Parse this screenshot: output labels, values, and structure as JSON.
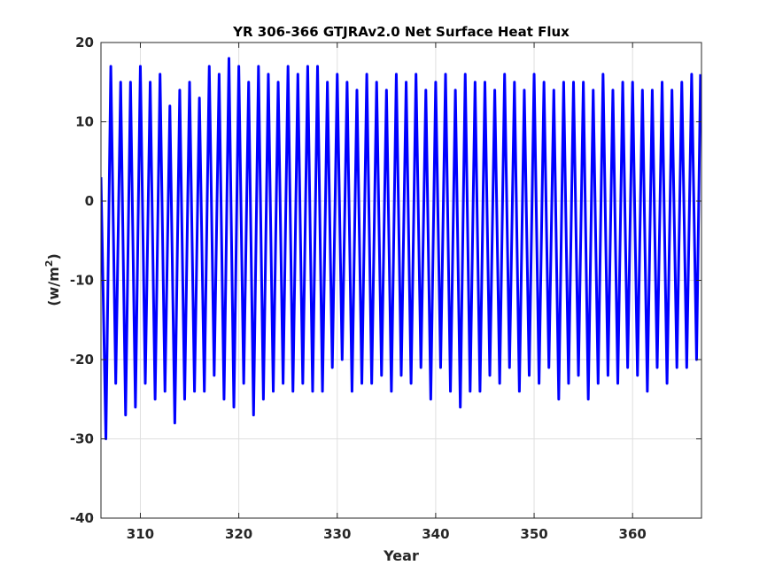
{
  "chart_data": {
    "type": "line",
    "title": "YR 306-366 GTJRAv2.0 Net Surface Heat Flux",
    "xlabel": "Year",
    "ylabel_base": "(w/m",
    "ylabel_sup": "2",
    "ylabel_end": ")",
    "xlim": [
      306,
      367
    ],
    "ylim": [
      -40,
      20
    ],
    "xticks": [
      310,
      320,
      330,
      340,
      350,
      360
    ],
    "yticks": [
      -40,
      -30,
      -20,
      -10,
      0,
      10,
      20
    ],
    "grid": true,
    "line_color": "#0000ff",
    "series": [
      {
        "x": [
          306.0,
          306.5,
          307.0,
          307.5,
          308.0,
          308.5,
          309.0,
          309.5,
          310.0,
          310.5,
          311.0,
          311.5,
          312.0,
          312.5,
          313.0,
          313.5,
          314.0,
          314.5,
          315.0,
          315.5,
          316.0,
          316.5,
          317.0,
          317.5,
          318.0,
          318.5,
          319.0,
          319.5,
          320.0,
          320.5,
          321.0,
          321.5,
          322.0,
          322.5,
          323.0,
          323.5,
          324.0,
          324.5,
          325.0,
          325.5,
          326.0,
          326.5,
          327.0,
          327.5,
          328.0,
          328.5,
          329.0,
          329.5,
          330.0,
          330.5,
          331.0,
          331.5,
          332.0,
          332.5,
          333.0,
          333.5,
          334.0,
          334.5,
          335.0,
          335.5,
          336.0,
          336.5,
          337.0,
          337.5,
          338.0,
          338.5,
          339.0,
          339.5,
          340.0,
          340.5,
          341.0,
          341.5,
          342.0,
          342.5,
          343.0,
          343.5,
          344.0,
          344.5,
          345.0,
          345.5,
          346.0,
          346.5,
          347.0,
          347.5,
          348.0,
          348.5,
          349.0,
          349.5,
          350.0,
          350.5,
          351.0,
          351.5,
          352.0,
          352.5,
          353.0,
          353.5,
          354.0,
          354.5,
          355.0,
          355.5,
          356.0,
          356.5,
          357.0,
          357.5,
          358.0,
          358.5,
          359.0,
          359.5,
          360.0,
          360.5,
          361.0,
          361.5,
          362.0,
          362.5,
          363.0,
          363.5,
          364.0,
          364.5,
          365.0,
          365.5,
          366.0,
          366.5,
          366.9
        ],
        "y": [
          3,
          -30,
          17,
          -23,
          15,
          -27,
          15,
          -26,
          17,
          -23,
          15,
          -25,
          16,
          -24,
          12,
          -28,
          14,
          -25,
          15,
          -24,
          13,
          -24,
          17,
          -22,
          16,
          -25,
          18,
          -26,
          17,
          -23,
          15,
          -27,
          17,
          -25,
          16,
          -24,
          15,
          -23,
          17,
          -24,
          16,
          -23,
          17,
          -24,
          17,
          -24,
          15,
          -21,
          16,
          -20,
          15,
          -24,
          14,
          -23,
          16,
          -23,
          15,
          -22,
          14,
          -24,
          16,
          -22,
          15,
          -23,
          16,
          -21,
          14,
          -25,
          15,
          -21,
          16,
          -24,
          14,
          -26,
          16,
          -24,
          15,
          -24,
          15,
          -22,
          14,
          -23,
          16,
          -21,
          15,
          -24,
          14,
          -22,
          16,
          -23,
          15,
          -21,
          14,
          -25,
          15,
          -23,
          15,
          -22,
          15,
          -25,
          14,
          -23,
          16,
          -22,
          14,
          -23,
          15,
          -21,
          15,
          -22,
          14,
          -24,
          14,
          -21,
          15,
          -23,
          14,
          -21,
          15,
          -21,
          16,
          -20,
          16
        ]
      }
    ]
  }
}
